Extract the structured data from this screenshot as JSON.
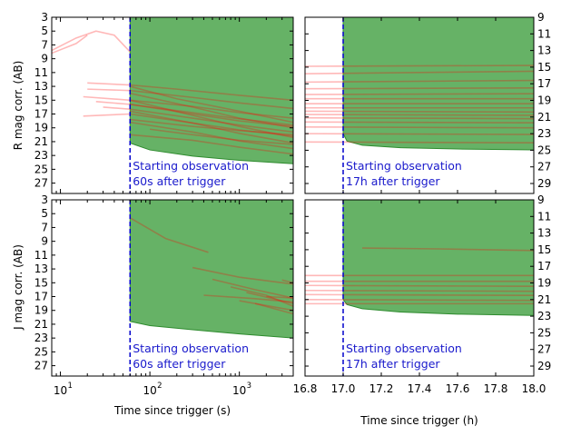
{
  "colors": {
    "window_fill": "#66b266",
    "window_edge": "#2e8b2e",
    "curve": "#ff0000",
    "trigger_line": "#0000cc",
    "annotation": "#1a1acc"
  },
  "labels": {
    "r_ylabel": "R mag corr. (AB)",
    "j_ylabel": "J mag corr. (AB)",
    "xlabel_seconds": "Time since trigger (s)",
    "xlabel_hours": "Time since trigger (h)",
    "annotation_60s_line1": "Starting observation",
    "annotation_60s_line2": "60s after trigger",
    "annotation_17h_line1": "Starting observation",
    "annotation_17h_line2": "17h after trigger"
  },
  "chart_data": [
    {
      "id": "r_seconds",
      "type": "line",
      "xscale": "log",
      "xlim": [
        8,
        4000
      ],
      "ylim": [
        28.5,
        3
      ],
      "ylabel": "R mag corr. (AB)",
      "y_ticks": [
        3,
        5,
        7,
        9,
        11,
        13,
        15,
        17,
        19,
        21,
        23,
        25,
        27
      ],
      "trigger_x": 60,
      "observable_window": {
        "x": [
          60,
          100,
          300,
          1000,
          4000
        ],
        "limit_mag": [
          21.2,
          22.2,
          23.1,
          23.7,
          24.2
        ]
      },
      "series": [
        {
          "x": [
            8,
            15,
            25,
            40,
            60
          ],
          "y": [
            7.8,
            6.0,
            5.0,
            5.6,
            8.0
          ]
        },
        {
          "x": [
            8,
            15,
            20
          ],
          "y": [
            8.2,
            6.8,
            5.6
          ]
        },
        {
          "x": [
            20,
            60,
            200,
            1000,
            4000
          ],
          "y": [
            12.5,
            12.8,
            13.4,
            14.3,
            15.0
          ]
        },
        {
          "x": [
            20,
            60,
            300,
            1000,
            4000
          ],
          "y": [
            13.4,
            13.6,
            14.6,
            15.4,
            16.2
          ]
        },
        {
          "x": [
            18,
            60,
            300,
            1000,
            4000
          ],
          "y": [
            14.5,
            15.0,
            15.9,
            16.8,
            17.6
          ]
        },
        {
          "x": [
            25,
            60,
            300,
            1000,
            4000
          ],
          "y": [
            15.2,
            15.6,
            16.8,
            17.7,
            18.6
          ]
        },
        {
          "x": [
            30,
            60,
            300,
            1000,
            4000
          ],
          "y": [
            16.0,
            16.3,
            17.6,
            18.6,
            19.6
          ]
        },
        {
          "x": [
            18,
            60,
            300,
            1000,
            4000
          ],
          "y": [
            17.3,
            17.0,
            18.3,
            19.3,
            20.2
          ]
        },
        {
          "x": [
            60,
            300,
            1000,
            4000
          ],
          "y": [
            14.0,
            16.0,
            17.6,
            19.0
          ]
        },
        {
          "x": [
            60,
            300,
            1000,
            4000
          ],
          "y": [
            15.0,
            17.2,
            18.8,
            20.4
          ]
        },
        {
          "x": [
            60,
            300,
            1000,
            4000
          ],
          "y": [
            16.6,
            18.3,
            19.8,
            21.2
          ]
        },
        {
          "x": [
            60,
            300,
            1000,
            4000
          ],
          "y": [
            18.2,
            19.6,
            20.9,
            22.0
          ]
        },
        {
          "x": [
            60,
            300,
            1000,
            4000
          ],
          "y": [
            20.0,
            20.8,
            21.8,
            22.8
          ]
        },
        {
          "x": [
            60,
            200,
            1000,
            4000
          ],
          "y": [
            13.0,
            14.8,
            16.6,
            18.2
          ]
        },
        {
          "x": [
            60,
            300,
            1000,
            4000
          ],
          "y": [
            15.6,
            17.0,
            18.0,
            18.8
          ]
        },
        {
          "x": [
            60,
            300,
            1000,
            4000
          ],
          "y": [
            17.8,
            18.8,
            19.4,
            20.0
          ]
        },
        {
          "x": [
            100,
            300,
            1000,
            4000
          ],
          "y": [
            19.2,
            20.0,
            20.8,
            21.4
          ]
        }
      ]
    },
    {
      "id": "r_hours",
      "type": "line",
      "xlim": [
        16.8,
        18.0
      ],
      "ylim": [
        30.2,
        9
      ],
      "y_ticks": [
        9,
        11,
        13,
        15,
        17,
        19,
        21,
        23,
        25,
        27,
        29
      ],
      "trigger_x": 17.0,
      "observable_window": {
        "x": [
          17.0,
          17.02,
          17.1,
          17.3,
          17.6,
          18.0
        ],
        "limit_mag": [
          23.0,
          23.9,
          24.4,
          24.7,
          24.85,
          24.95
        ]
      },
      "series": [
        {
          "x": [
            16.8,
            18.0
          ],
          "y": [
            15.8,
            15.5
          ]
        },
        {
          "x": [
            16.8,
            18.0
          ],
          "y": [
            16.8,
            16.6
          ]
        },
        {
          "x": [
            16.8,
            18.0
          ],
          "y": [
            17.6,
            17.5
          ]
        },
        {
          "x": [
            16.8,
            18.0
          ],
          "y": [
            18.3,
            18.2
          ]
        },
        {
          "x": [
            16.8,
            18.0
          ],
          "y": [
            18.8,
            18.8
          ]
        },
        {
          "x": [
            16.8,
            18.0
          ],
          "y": [
            19.4,
            19.4
          ]
        },
        {
          "x": [
            16.8,
            18.0
          ],
          "y": [
            19.9,
            19.9
          ]
        },
        {
          "x": [
            16.8,
            18.0
          ],
          "y": [
            20.3,
            20.4
          ]
        },
        {
          "x": [
            16.8,
            18.0
          ],
          "y": [
            20.7,
            20.8
          ]
        },
        {
          "x": [
            16.8,
            18.0
          ],
          "y": [
            21.1,
            21.2
          ]
        },
        {
          "x": [
            16.8,
            18.0
          ],
          "y": [
            21.6,
            21.7
          ]
        },
        {
          "x": [
            16.8,
            18.0
          ],
          "y": [
            22.2,
            22.3
          ]
        },
        {
          "x": [
            16.8,
            18.0
          ],
          "y": [
            23.0,
            23.1
          ]
        },
        {
          "x": [
            16.8,
            18.0
          ],
          "y": [
            24.0,
            24.1
          ]
        },
        {
          "x": [
            16.8,
            18.0
          ],
          "y": [
            14.9,
            14.8
          ]
        }
      ]
    },
    {
      "id": "j_seconds",
      "type": "line",
      "xscale": "log",
      "xlim": [
        8,
        4000
      ],
      "ylim": [
        28.5,
        3
      ],
      "ylabel": "J mag corr. (AB)",
      "y_ticks": [
        3,
        5,
        7,
        9,
        11,
        13,
        15,
        17,
        19,
        21,
        23,
        25,
        27
      ],
      "trigger_x": 60,
      "observable_window": {
        "x": [
          60,
          100,
          300,
          1000,
          4000
        ],
        "limit_mag": [
          20.6,
          21.2,
          21.8,
          22.4,
          23.0
        ]
      },
      "series": [
        {
          "x": [
            60,
            150,
            450
          ],
          "y": [
            5.6,
            8.6,
            10.6
          ]
        },
        {
          "x": [
            300,
            1000,
            4000
          ],
          "y": [
            12.8,
            14.2,
            15.2
          ]
        },
        {
          "x": [
            500,
            1500,
            4000
          ],
          "y": [
            14.5,
            16.0,
            17.2
          ]
        },
        {
          "x": [
            400,
            1500,
            4000
          ],
          "y": [
            16.8,
            17.3,
            17.8
          ]
        },
        {
          "x": [
            800,
            2000,
            4000
          ],
          "y": [
            15.6,
            16.8,
            18.4
          ]
        },
        {
          "x": [
            1200,
            4000
          ],
          "y": [
            16.4,
            18.0
          ]
        },
        {
          "x": [
            1500,
            4000
          ],
          "y": [
            18.0,
            19.5
          ]
        },
        {
          "x": [
            1000,
            4000
          ],
          "y": [
            17.6,
            19.0
          ]
        },
        {
          "x": [
            2000,
            4000
          ],
          "y": [
            17.0,
            17.2
          ]
        },
        {
          "x": [
            3000,
            4000
          ],
          "y": [
            14.6,
            15.0
          ]
        }
      ]
    },
    {
      "id": "j_hours",
      "type": "line",
      "xlim": [
        16.8,
        18.0
      ],
      "ylim": [
        30.2,
        9
      ],
      "y_ticks": [
        9,
        11,
        13,
        15,
        17,
        19,
        21,
        23,
        25,
        27,
        29
      ],
      "trigger_x": 17.0,
      "observable_window": {
        "x": [
          17.0,
          17.02,
          17.1,
          17.3,
          17.6,
          18.0
        ],
        "limit_mag": [
          21.0,
          21.6,
          22.1,
          22.5,
          22.75,
          22.9
        ]
      },
      "series": [
        {
          "x": [
            17.1,
            17.5,
            18.0
          ],
          "y": [
            14.8,
            14.9,
            15.1
          ]
        },
        {
          "x": [
            16.8,
            18.0
          ],
          "y": [
            18.1,
            18.1
          ]
        },
        {
          "x": [
            16.8,
            18.0
          ],
          "y": [
            18.8,
            18.8
          ]
        },
        {
          "x": [
            16.8,
            18.0
          ],
          "y": [
            19.3,
            19.4
          ]
        },
        {
          "x": [
            16.8,
            18.0
          ],
          "y": [
            19.9,
            20.0
          ]
        },
        {
          "x": [
            16.8,
            18.0
          ],
          "y": [
            20.4,
            20.5
          ]
        },
        {
          "x": [
            16.8,
            18.0
          ],
          "y": [
            21.0,
            21.1
          ]
        },
        {
          "x": [
            16.8,
            18.0
          ],
          "y": [
            21.5,
            21.5
          ]
        }
      ]
    }
  ]
}
